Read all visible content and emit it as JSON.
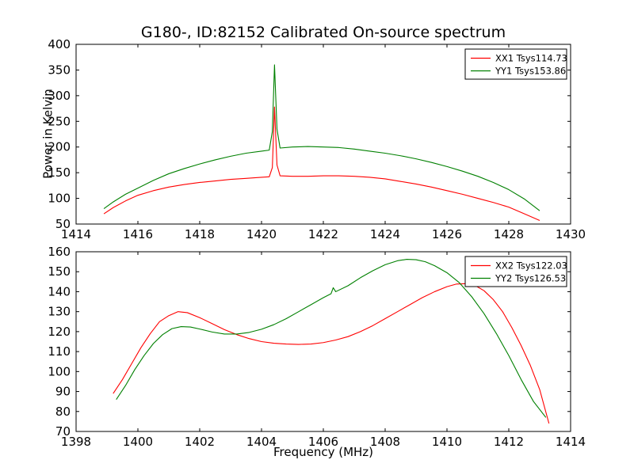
{
  "figure": {
    "background": "#ffffff",
    "axis_color": "#000000",
    "text_color": "#000000"
  },
  "chart_data": [
    {
      "type": "line",
      "title": "G180-, ID:82152 Calibrated On-source spectrum",
      "xlabel": "",
      "ylabel": "Power in Kelvin",
      "xlim": [
        1414,
        1430
      ],
      "ylim": [
        50,
        400
      ],
      "xticks": [
        1414,
        1416,
        1418,
        1420,
        1422,
        1424,
        1426,
        1428,
        1430
      ],
      "yticks": [
        50,
        100,
        150,
        200,
        250,
        300,
        350,
        400
      ],
      "grid": false,
      "legend_position": "upper right",
      "series": [
        {
          "name": "XX1 Tsys114.73",
          "color": "#ff0000",
          "points": [
            [
              1414.9,
              70
            ],
            [
              1415.2,
              82
            ],
            [
              1415.6,
              95
            ],
            [
              1416.0,
              106
            ],
            [
              1416.5,
              115
            ],
            [
              1417.0,
              122
            ],
            [
              1417.5,
              127
            ],
            [
              1418.0,
              131
            ],
            [
              1418.5,
              134
            ],
            [
              1419.0,
              137
            ],
            [
              1419.5,
              139
            ],
            [
              1420.0,
              141
            ],
            [
              1420.25,
              142
            ],
            [
              1420.35,
              160
            ],
            [
              1420.42,
              278
            ],
            [
              1420.5,
              165
            ],
            [
              1420.6,
              144
            ],
            [
              1421.0,
              143
            ],
            [
              1421.5,
              143
            ],
            [
              1422.0,
              144
            ],
            [
              1422.5,
              144
            ],
            [
              1423.0,
              143
            ],
            [
              1423.5,
              141
            ],
            [
              1424.0,
              138
            ],
            [
              1424.5,
              133
            ],
            [
              1425.0,
              128
            ],
            [
              1425.5,
              122
            ],
            [
              1426.0,
              115
            ],
            [
              1426.5,
              108
            ],
            [
              1427.0,
              100
            ],
            [
              1427.5,
              92
            ],
            [
              1428.0,
              83
            ],
            [
              1428.5,
              70
            ],
            [
              1429.0,
              57
            ]
          ]
        },
        {
          "name": "YY1 Tsys153.86",
          "color": "#008000",
          "points": [
            [
              1414.9,
              80
            ],
            [
              1415.2,
              93
            ],
            [
              1415.6,
              108
            ],
            [
              1416.0,
              120
            ],
            [
              1416.5,
              135
            ],
            [
              1417.0,
              148
            ],
            [
              1417.5,
              158
            ],
            [
              1418.0,
              167
            ],
            [
              1418.5,
              175
            ],
            [
              1419.0,
              182
            ],
            [
              1419.5,
              188
            ],
            [
              1420.0,
              192
            ],
            [
              1420.25,
              194
            ],
            [
              1420.35,
              230
            ],
            [
              1420.42,
              360
            ],
            [
              1420.5,
              235
            ],
            [
              1420.6,
              198
            ],
            [
              1421.0,
              200
            ],
            [
              1421.5,
              201
            ],
            [
              1422.0,
              200
            ],
            [
              1422.5,
              199
            ],
            [
              1423.0,
              196
            ],
            [
              1423.5,
              192
            ],
            [
              1424.0,
              188
            ],
            [
              1424.5,
              183
            ],
            [
              1425.0,
              177
            ],
            [
              1425.5,
              170
            ],
            [
              1426.0,
              162
            ],
            [
              1426.5,
              153
            ],
            [
              1427.0,
              143
            ],
            [
              1427.5,
              131
            ],
            [
              1428.0,
              117
            ],
            [
              1428.5,
              99
            ],
            [
              1429.0,
              76
            ]
          ]
        }
      ]
    },
    {
      "type": "line",
      "title": "",
      "xlabel": "Frequency (MHz)",
      "ylabel": "",
      "xlim": [
        1398,
        1414
      ],
      "ylim": [
        70,
        160
      ],
      "xticks": [
        1398,
        1400,
        1402,
        1404,
        1406,
        1408,
        1410,
        1412,
        1414
      ],
      "yticks": [
        70,
        80,
        90,
        100,
        110,
        120,
        130,
        140,
        150,
        160
      ],
      "grid": false,
      "legend_position": "upper right",
      "series": [
        {
          "name": "XX2 Tsys122.03",
          "color": "#ff0000",
          "points": [
            [
              1399.2,
              89
            ],
            [
              1399.5,
              96
            ],
            [
              1399.8,
              104
            ],
            [
              1400.1,
              112
            ],
            [
              1400.4,
              119
            ],
            [
              1400.7,
              125
            ],
            [
              1401.0,
              128
            ],
            [
              1401.3,
              130
            ],
            [
              1401.6,
              129.5
            ],
            [
              1402.0,
              127
            ],
            [
              1402.4,
              124
            ],
            [
              1402.8,
              121
            ],
            [
              1403.2,
              118.5
            ],
            [
              1403.6,
              116.5
            ],
            [
              1404.0,
              115
            ],
            [
              1404.4,
              114.2
            ],
            [
              1404.8,
              113.8
            ],
            [
              1405.2,
              113.6
            ],
            [
              1405.6,
              113.8
            ],
            [
              1406.0,
              114.5
            ],
            [
              1406.4,
              115.8
            ],
            [
              1406.8,
              117.5
            ],
            [
              1407.2,
              120
            ],
            [
              1407.6,
              123
            ],
            [
              1408.0,
              126.5
            ],
            [
              1408.4,
              130
            ],
            [
              1408.8,
              133.5
            ],
            [
              1409.2,
              137
            ],
            [
              1409.6,
              140
            ],
            [
              1410.0,
              142.5
            ],
            [
              1410.3,
              143.8
            ],
            [
              1410.6,
              144
            ],
            [
              1410.9,
              143.2
            ],
            [
              1411.2,
              140.5
            ],
            [
              1411.5,
              136
            ],
            [
              1411.8,
              130
            ],
            [
              1412.1,
              122
            ],
            [
              1412.4,
              113
            ],
            [
              1412.7,
              103
            ],
            [
              1413.0,
              91
            ],
            [
              1413.3,
              74
            ]
          ]
        },
        {
          "name": "YY2 Tsys126.53",
          "color": "#008000",
          "points": [
            [
              1399.3,
              86
            ],
            [
              1399.6,
              93
            ],
            [
              1399.9,
              101
            ],
            [
              1400.2,
              108
            ],
            [
              1400.5,
              114
            ],
            [
              1400.8,
              118.5
            ],
            [
              1401.1,
              121.5
            ],
            [
              1401.4,
              122.5
            ],
            [
              1401.7,
              122.3
            ],
            [
              1402.0,
              121.3
            ],
            [
              1402.4,
              119.8
            ],
            [
              1402.8,
              118.8
            ],
            [
              1403.2,
              118.8
            ],
            [
              1403.6,
              119.6
            ],
            [
              1404.0,
              121.2
            ],
            [
              1404.4,
              123.5
            ],
            [
              1404.8,
              126.5
            ],
            [
              1405.2,
              130
            ],
            [
              1405.6,
              133.5
            ],
            [
              1406.0,
              137
            ],
            [
              1406.25,
              139
            ],
            [
              1406.32,
              142
            ],
            [
              1406.4,
              140
            ],
            [
              1406.8,
              143
            ],
            [
              1407.2,
              147
            ],
            [
              1407.6,
              150.5
            ],
            [
              1408.0,
              153.5
            ],
            [
              1408.4,
              155.5
            ],
            [
              1408.7,
              156.2
            ],
            [
              1409.0,
              156
            ],
            [
              1409.3,
              155
            ],
            [
              1409.6,
              153
            ],
            [
              1410.0,
              149.5
            ],
            [
              1410.4,
              144.5
            ],
            [
              1410.8,
              137.5
            ],
            [
              1411.2,
              129
            ],
            [
              1411.6,
              119
            ],
            [
              1412.0,
              108
            ],
            [
              1412.4,
              96
            ],
            [
              1412.8,
              85
            ],
            [
              1413.2,
              77
            ]
          ]
        }
      ]
    }
  ]
}
